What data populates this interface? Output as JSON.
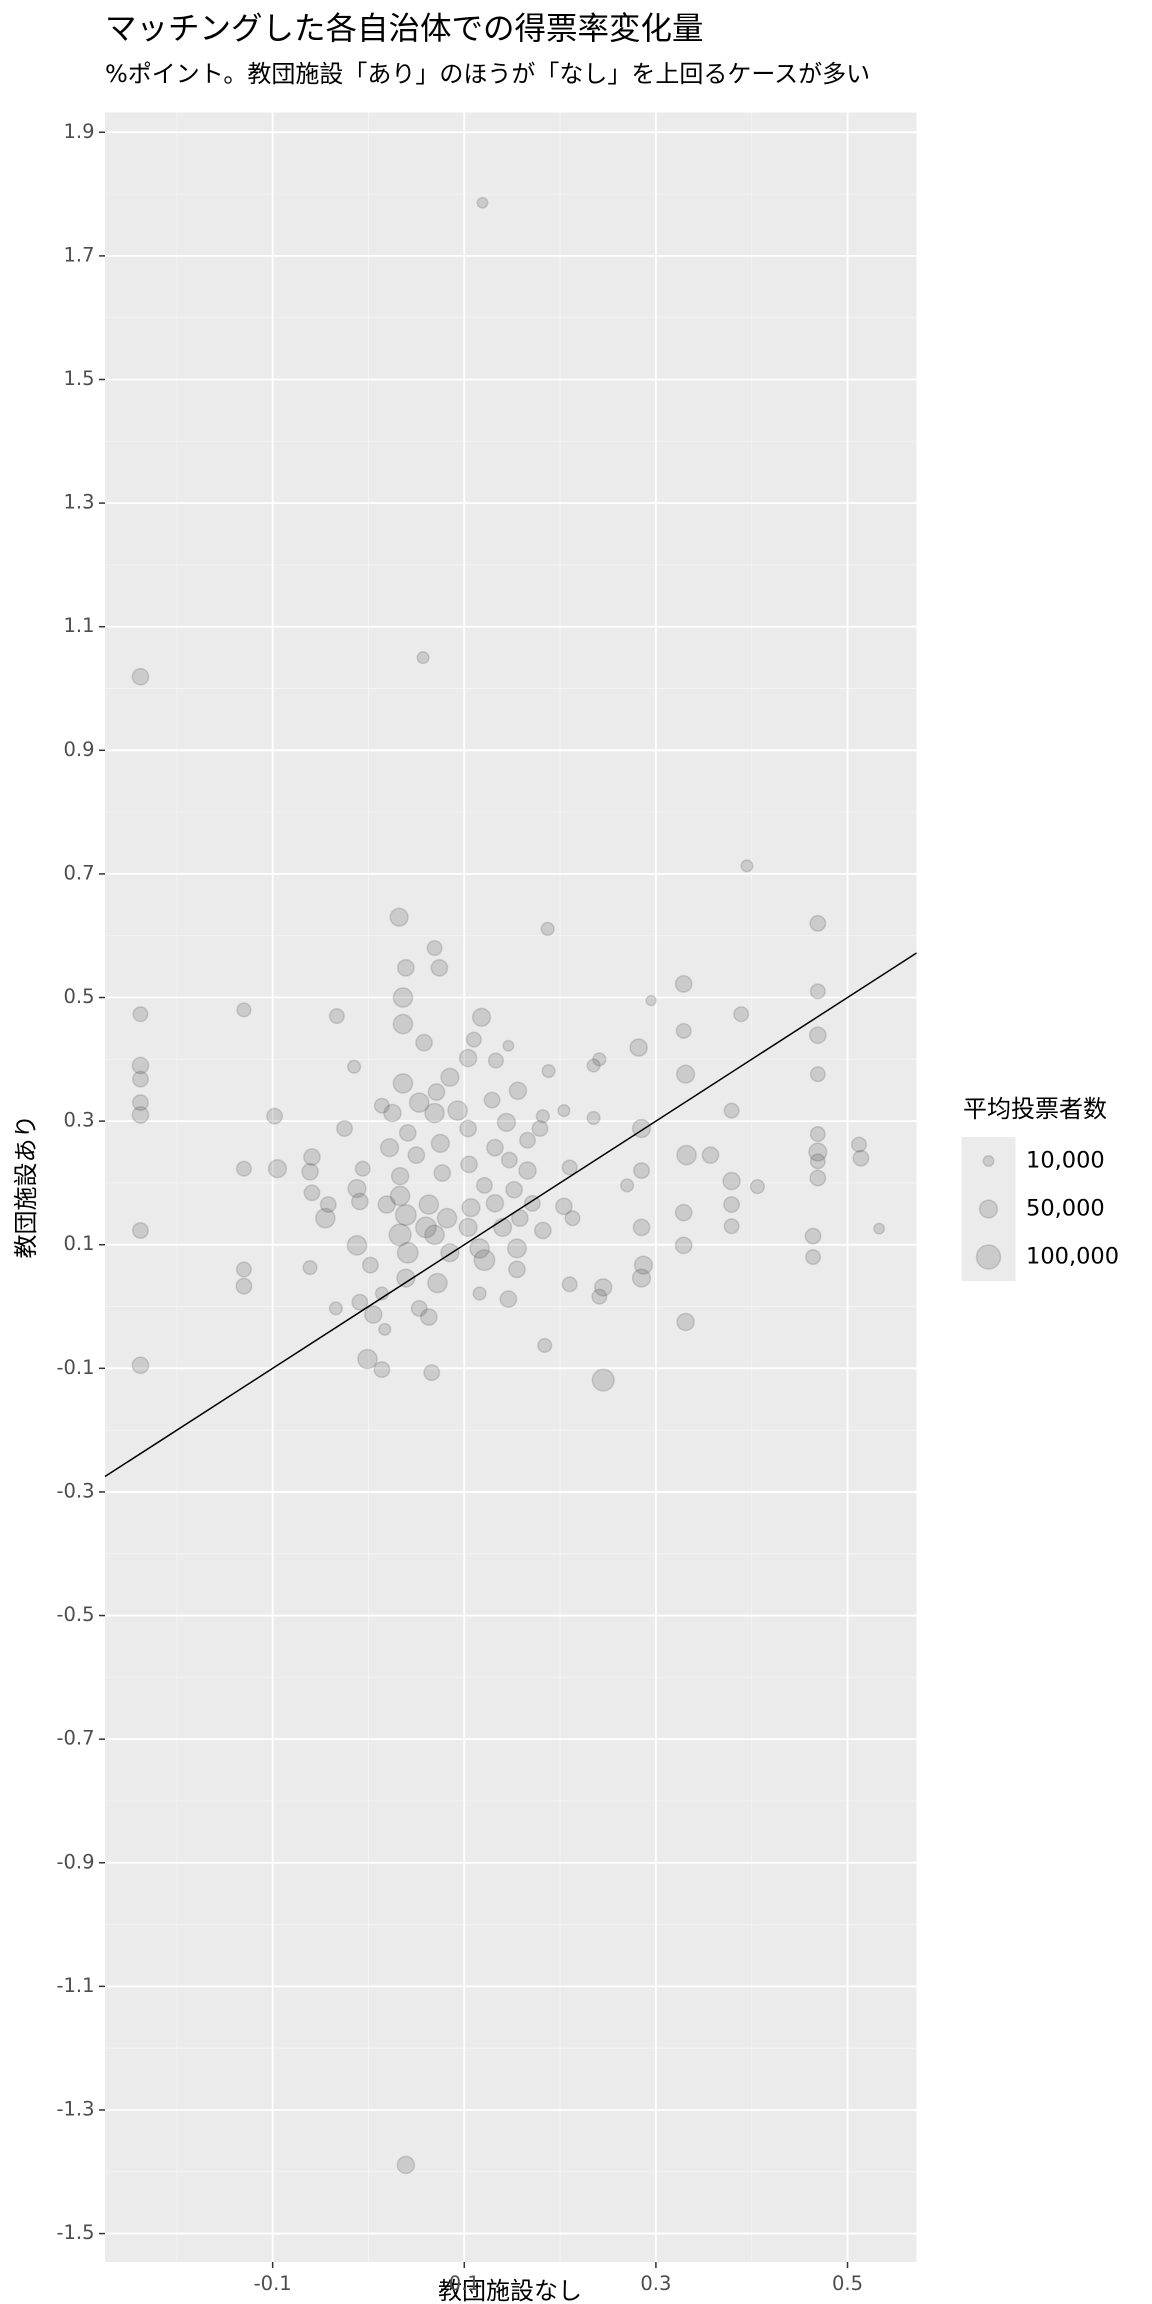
{
  "chart_data": {
    "type": "scatter",
    "title": "マッチングした各自治体での得票率変化量",
    "subtitle": "%ポイント。教団施設「あり」のほうが「なし」を上回るケースが多い",
    "x_label": "教団施設なし",
    "y_label": "教団施設あり",
    "xlim": [
      -0.275,
      0.572
    ],
    "ylim": [
      -1.546,
      1.932
    ],
    "xticks": [
      -0.1,
      0.1,
      0.3,
      0.5
    ],
    "yticks": [
      1.9,
      1.7,
      1.5,
      1.3,
      1.1,
      0.9,
      0.7,
      0.5,
      0.3,
      0.1,
      -0.1,
      -0.3,
      -0.5,
      -0.7,
      -0.9,
      -1.1,
      -1.3,
      -1.5
    ],
    "xminor_ticks": [
      -0.2,
      0,
      0.2,
      0.4
    ],
    "yminor_ticks": [
      1.8,
      1.6,
      1.4,
      1.2,
      1.0,
      0.8,
      0.6,
      0.4,
      0.2,
      0,
      -0.2,
      -0.4,
      -0.6,
      -0.8,
      -1.0,
      -1.2,
      -1.4
    ],
    "grid": true,
    "color": "#4d4d4d",
    "alpha": 0.2,
    "reference_line": {
      "slope": 1,
      "intercept": 0
    },
    "size_legend": {
      "title": "平均投票者数",
      "entries": [
        {
          "value": 10000,
          "label": "10,000"
        },
        {
          "value": 50000,
          "label": "50,000"
        },
        {
          "value": 100000,
          "label": "100,000"
        }
      ]
    },
    "x": [
      0.119,
      0.057,
      -0.238,
      0.395,
      0.187,
      0.032,
      0.469,
      0.069,
      0.039,
      0.074,
      0.036,
      0.295,
      0.329,
      0.469,
      -0.238,
      -0.13,
      -0.033,
      0.036,
      0.118,
      0.389,
      0.058,
      0.11,
      0.469,
      0.329,
      0.146,
      0.282,
      0.104,
      0.133,
      0.241,
      -0.238,
      -0.015,
      0.188,
      0.235,
      0.331,
      0.469,
      -0.238,
      0.036,
      0.085,
      0.156,
      0.071,
      -0.238,
      0.014,
      0.053,
      0.093,
      0.129,
      -0.238,
      -0.098,
      0.025,
      0.069,
      0.204,
      0.182,
      0.235,
      0.379,
      0.285,
      -0.025,
      0.041,
      0.104,
      0.144,
      0.179,
      0.469,
      0.022,
      0.075,
      0.132,
      0.166,
      0.332,
      0.357,
      0.469,
      0.512,
      -0.059,
      0.05,
      0.105,
      0.147,
      0.514,
      -0.13,
      -0.095,
      -0.006,
      0.033,
      0.077,
      0.166,
      0.21,
      0.285,
      0.469,
      0.469,
      -0.061,
      0.121,
      0.152,
      0.379,
      0.406,
      -0.012,
      -0.059,
      0.033,
      0.27,
      -0.042,
      -0.009,
      0.019,
      0.063,
      0.107,
      0.132,
      0.171,
      0.204,
      0.379,
      -0.045,
      0.039,
      0.082,
      0.158,
      0.213,
      0.329,
      0.06,
      0.104,
      0.14,
      0.182,
      -0.238,
      0.379,
      0.533,
      0.033,
      0.069,
      0.285,
      0.464,
      -0.012,
      0.116,
      0.155,
      0.329,
      0.041,
      0.085,
      0.121,
      0.464,
      -0.13,
      -0.061,
      0.002,
      0.155,
      0.287,
      0.039,
      0.072,
      0.285,
      -0.13,
      0.21,
      0.245,
      0.116,
      0.146,
      0.014,
      0.241,
      -0.009,
      -0.034,
      0.005,
      0.063,
      0.053,
      0.331,
      0.017,
      0.184,
      -0.001,
      -0.238,
      0.014,
      0.066,
      0.245,
      0.039
    ],
    "values": [
      1.786,
      1.05,
      1.019,
      0.713,
      0.611,
      0.63,
      0.62,
      0.58,
      0.548,
      0.548,
      0.5,
      0.495,
      0.522,
      0.51,
      0.473,
      0.48,
      0.47,
      0.457,
      0.468,
      0.473,
      0.427,
      0.432,
      0.439,
      0.446,
      0.422,
      0.419,
      0.402,
      0.398,
      0.4,
      0.39,
      0.388,
      0.381,
      0.39,
      0.376,
      0.376,
      0.368,
      0.361,
      0.371,
      0.349,
      0.347,
      0.33,
      0.325,
      0.33,
      0.317,
      0.334,
      0.31,
      0.308,
      0.313,
      0.313,
      0.317,
      0.308,
      0.305,
      0.317,
      0.288,
      0.288,
      0.281,
      0.288,
      0.298,
      0.288,
      0.279,
      0.257,
      0.264,
      0.257,
      0.269,
      0.245,
      0.245,
      0.25,
      0.262,
      0.242,
      0.245,
      0.23,
      0.237,
      0.24,
      0.223,
      0.223,
      0.223,
      0.211,
      0.216,
      0.22,
      0.225,
      0.22,
      0.235,
      0.208,
      0.218,
      0.196,
      0.189,
      0.203,
      0.194,
      0.191,
      0.184,
      0.179,
      0.196,
      0.165,
      0.17,
      0.165,
      0.165,
      0.16,
      0.167,
      0.167,
      0.162,
      0.165,
      0.143,
      0.148,
      0.143,
      0.143,
      0.143,
      0.152,
      0.128,
      0.128,
      0.128,
      0.123,
      0.123,
      0.13,
      0.126,
      0.116,
      0.116,
      0.128,
      0.114,
      0.099,
      0.094,
      0.094,
      0.099,
      0.087,
      0.087,
      0.075,
      0.08,
      0.06,
      0.063,
      0.067,
      0.06,
      0.067,
      0.046,
      0.038,
      0.046,
      0.033,
      0.036,
      0.031,
      0.021,
      0.012,
      0.021,
      0.016,
      0.007,
      -0.003,
      -0.013,
      -0.017,
      -0.003,
      -0.025,
      -0.037,
      -0.063,
      -0.085,
      -0.095,
      -0.102,
      -0.107,
      -0.119,
      -1.389
    ],
    "sizes": [
      10000,
      15000,
      40000,
      15000,
      20000,
      50000,
      35000,
      30000,
      40000,
      40000,
      60000,
      8000,
      40000,
      30000,
      30000,
      25000,
      30000,
      60000,
      50000,
      30000,
      40000,
      30000,
      40000,
      30000,
      10000,
      45000,
      45000,
      30000,
      20000,
      40000,
      20000,
      20000,
      20000,
      50000,
      30000,
      35000,
      60000,
      50000,
      45000,
      40000,
      35000,
      30000,
      60000,
      60000,
      35000,
      40000,
      35000,
      45000,
      60000,
      15000,
      20000,
      20000,
      30000,
      50000,
      35000,
      40000,
      40000,
      50000,
      35000,
      30000,
      50000,
      50000,
      40000,
      35000,
      60000,
      40000,
      50000,
      30000,
      40000,
      40000,
      40000,
      35000,
      35000,
      30000,
      50000,
      30000,
      45000,
      40000,
      45000,
      30000,
      35000,
      30000,
      35000,
      40000,
      35000,
      40000,
      45000,
      25000,
      50000,
      35000,
      60000,
      20000,
      35000,
      40000,
      45000,
      60000,
      50000,
      45000,
      35000,
      40000,
      35000,
      60000,
      70000,
      60000,
      40000,
      30000,
      40000,
      70000,
      50000,
      50000,
      40000,
      35000,
      30000,
      10000,
      80000,
      60000,
      40000,
      35000,
      60000,
      60000,
      55000,
      40000,
      70000,
      50000,
      70000,
      30000,
      30000,
      25000,
      35000,
      40000,
      50000,
      50000,
      60000,
      50000,
      35000,
      30000,
      45000,
      20000,
      40000,
      20000,
      30000,
      35000,
      20000,
      45000,
      40000,
      35000,
      45000,
      15000,
      25000,
      60000,
      40000,
      35000,
      35000,
      80000,
      45000
    ]
  }
}
